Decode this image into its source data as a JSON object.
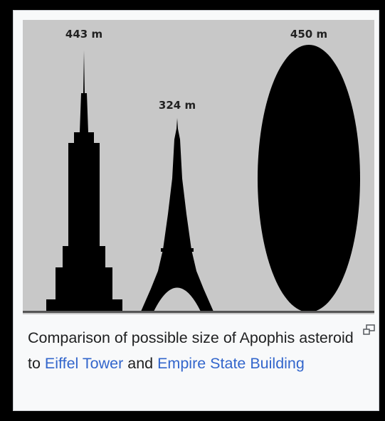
{
  "figure": {
    "labels": [
      "443 m",
      "324 m",
      "450 m"
    ]
  },
  "caption": {
    "text_1": "Comparison of possible size of Apophis asteroid to ",
    "link_1": "Eiffel Tower",
    "text_2": " and ",
    "link_2": "Empire State Building"
  }
}
